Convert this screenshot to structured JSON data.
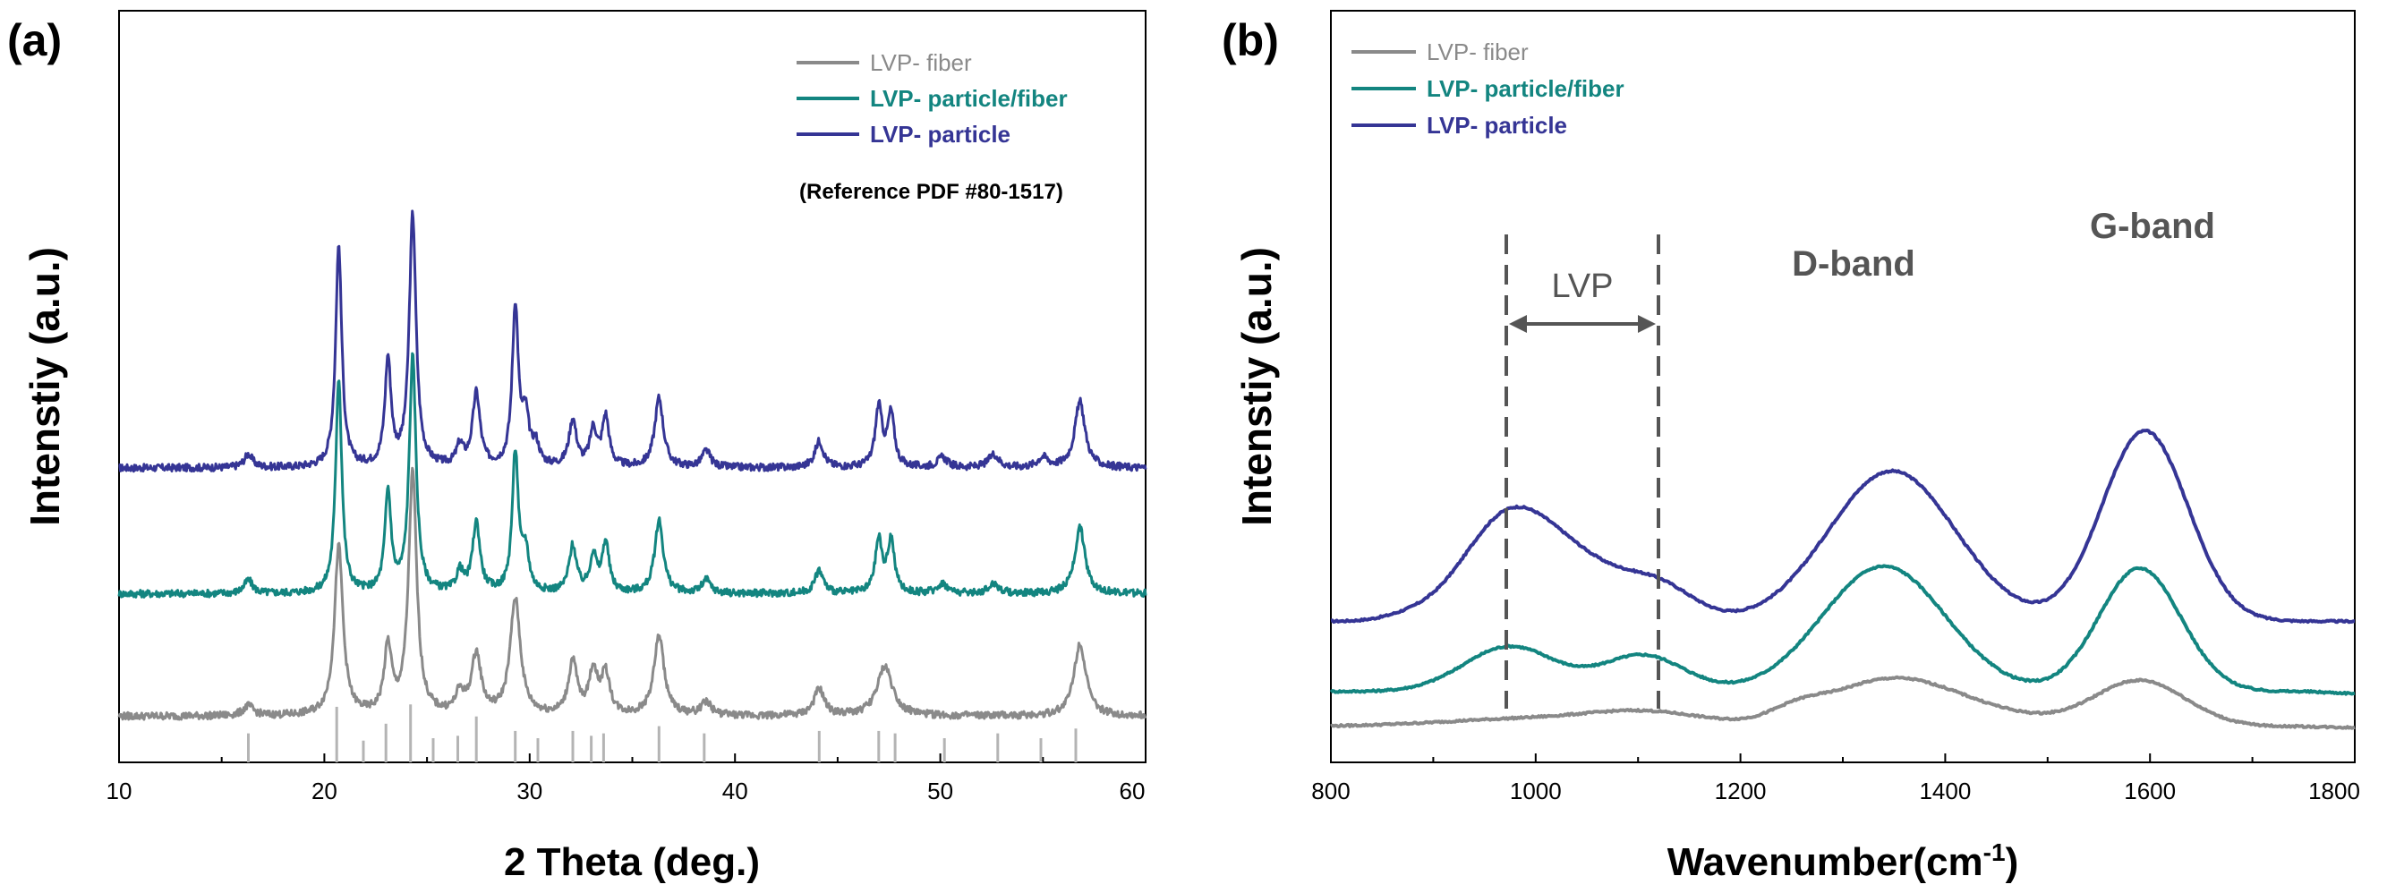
{
  "panels": [
    {
      "label": "(a)",
      "xlabel": "2 Theta (deg.)",
      "ylabel": "Intenstiy (a.u.)",
      "legend": [
        "LVP- fiber",
        "LVP- particle/fiber",
        "LVP- particle"
      ],
      "note": "(Reference PDF #80-1517)",
      "xticks": [
        "10",
        "20",
        "30",
        "40",
        "50",
        "60"
      ]
    },
    {
      "label": "(b)",
      "xlabel": "Wavenumber(cm",
      "xlabel_sup": "-1",
      "xlabel_close": ")",
      "ylabel": "Intenstiy (a.u.)",
      "legend": [
        "LVP- fiber",
        "LVP- particle/fiber",
        "LVP- particle"
      ],
      "annotations": [
        "LVP",
        "D-band",
        "G-band"
      ],
      "xticks": [
        "800",
        "1000",
        "1200",
        "1400",
        "1600",
        "1800"
      ]
    }
  ],
  "colors": {
    "fiber": "#8a8a8a",
    "particle_fiber": "#138580",
    "particle": "#353595",
    "reference": "#b4b4b4"
  },
  "chart_data": [
    {
      "type": "line",
      "xlim": [
        10,
        60
      ],
      "y_axis": "Intenstiy (a.u.), arbitrary units, traces vertically offset",
      "series": [
        {
          "name": "LVP- particle",
          "baseline": 7.7,
          "peaks": [
            [
              16.3,
              0.4,
              0.25
            ],
            [
              20.7,
              6.7,
              0.18
            ],
            [
              23.1,
              3.2,
              0.18
            ],
            [
              24.3,
              7.6,
              0.2
            ],
            [
              26.6,
              0.6,
              0.2
            ],
            [
              27.4,
              2.2,
              0.22
            ],
            [
              29.3,
              4.8,
              0.18
            ],
            [
              29.8,
              1.4,
              0.2
            ],
            [
              30.3,
              0.6,
              0.2
            ],
            [
              32.1,
              1.4,
              0.22
            ],
            [
              33.1,
              1.1,
              0.2
            ],
            [
              33.7,
              1.5,
              0.2
            ],
            [
              36.3,
              2.1,
              0.25
            ],
            [
              38.6,
              0.5,
              0.25
            ],
            [
              44.1,
              0.8,
              0.25
            ],
            [
              47.0,
              1.8,
              0.2
            ],
            [
              47.6,
              1.6,
              0.2
            ],
            [
              50.1,
              0.3,
              0.3
            ],
            [
              52.6,
              0.4,
              0.3
            ],
            [
              55.0,
              0.3,
              0.3
            ],
            [
              56.8,
              2.0,
              0.3
            ]
          ]
        },
        {
          "name": "LVP- particle/fiber",
          "baseline": 3.9,
          "peaks": [
            [
              16.3,
              0.4,
              0.25
            ],
            [
              20.7,
              6.5,
              0.18
            ],
            [
              23.1,
              3.0,
              0.18
            ],
            [
              24.3,
              7.1,
              0.2
            ],
            [
              26.6,
              0.6,
              0.2
            ],
            [
              27.4,
              2.1,
              0.22
            ],
            [
              29.3,
              4.2,
              0.18
            ],
            [
              29.8,
              1.2,
              0.2
            ],
            [
              32.1,
              1.4,
              0.22
            ],
            [
              33.1,
              1.1,
              0.2
            ],
            [
              33.7,
              1.5,
              0.2
            ],
            [
              36.3,
              2.2,
              0.25
            ],
            [
              38.6,
              0.4,
              0.25
            ],
            [
              44.1,
              0.7,
              0.25
            ],
            [
              47.0,
              1.6,
              0.2
            ],
            [
              47.6,
              1.6,
              0.2
            ],
            [
              50.1,
              0.3,
              0.3
            ],
            [
              52.6,
              0.3,
              0.3
            ],
            [
              56.8,
              2.0,
              0.3
            ]
          ]
        },
        {
          "name": "LVP- fiber",
          "baseline": 0.2,
          "peaks": [
            [
              16.3,
              0.3,
              0.3
            ],
            [
              20.7,
              5.1,
              0.25
            ],
            [
              23.1,
              2.0,
              0.22
            ],
            [
              24.3,
              7.3,
              0.24
            ],
            [
              26.6,
              0.6,
              0.25
            ],
            [
              27.4,
              1.8,
              0.28
            ],
            [
              29.3,
              3.5,
              0.3
            ],
            [
              32.1,
              1.6,
              0.25
            ],
            [
              33.1,
              1.3,
              0.25
            ],
            [
              33.7,
              1.2,
              0.25
            ],
            [
              36.3,
              2.4,
              0.3
            ],
            [
              38.6,
              0.4,
              0.3
            ],
            [
              44.1,
              0.8,
              0.3
            ],
            [
              47.3,
              1.5,
              0.45
            ],
            [
              56.8,
              2.2,
              0.35
            ]
          ]
        }
      ],
      "reference_pdf_80_1517": [
        [
          16.3,
          1.2
        ],
        [
          20.6,
          2.3
        ],
        [
          21.9,
          0.9
        ],
        [
          23.0,
          1.6
        ],
        [
          24.2,
          2.4
        ],
        [
          25.3,
          1.0
        ],
        [
          26.5,
          1.1
        ],
        [
          27.4,
          1.9
        ],
        [
          29.3,
          1.3
        ],
        [
          30.4,
          1.0
        ],
        [
          32.1,
          1.3
        ],
        [
          33.0,
          1.1
        ],
        [
          33.6,
          1.2
        ],
        [
          36.3,
          1.5
        ],
        [
          38.5,
          1.2
        ],
        [
          44.1,
          1.3
        ],
        [
          47.0,
          1.3
        ],
        [
          47.8,
          1.2
        ],
        [
          50.2,
          1.0
        ],
        [
          52.8,
          1.2
        ],
        [
          54.9,
          1.0
        ],
        [
          56.6,
          1.4
        ]
      ]
    },
    {
      "type": "line",
      "xlim": [
        800,
        1800
      ],
      "y_axis": "Intenstiy (a.u.), arbitrary units, traces vertically offset",
      "series": [
        {
          "name": "LVP- particle",
          "baseline": 10.5,
          "peaks": [
            [
              875,
              0.4,
              25
            ],
            [
              975,
              10.6,
              45
            ],
            [
              1050,
              4.0,
              40
            ],
            [
              1120,
              3.4,
              35
            ],
            [
              1348,
              15.0,
              62
            ],
            [
              1595,
              19.0,
              42
            ]
          ],
          "tail": [
            1750,
            0.0
          ]
        },
        {
          "name": "LVP- particle/fiber",
          "baseline": 3.5,
          "peaks": [
            [
              975,
              4.5,
              45
            ],
            [
              1105,
              3.6,
              40
            ],
            [
              1340,
              12.5,
              60
            ],
            [
              1590,
              12.3,
              40
            ]
          ],
          "tail": [
            1750,
            -0.2
          ]
        },
        {
          "name": "LVP- fiber",
          "baseline": 0.0,
          "peaks": [
            [
              1000,
              0.8,
              90
            ],
            [
              1110,
              1.2,
              55
            ],
            [
              1255,
              1.0,
              25
            ],
            [
              1350,
              4.8,
              65
            ],
            [
              1460,
              0.6,
              50
            ],
            [
              1590,
              4.6,
              45
            ]
          ],
          "tail": [
            1750,
            -0.1
          ]
        }
      ]
    }
  ]
}
